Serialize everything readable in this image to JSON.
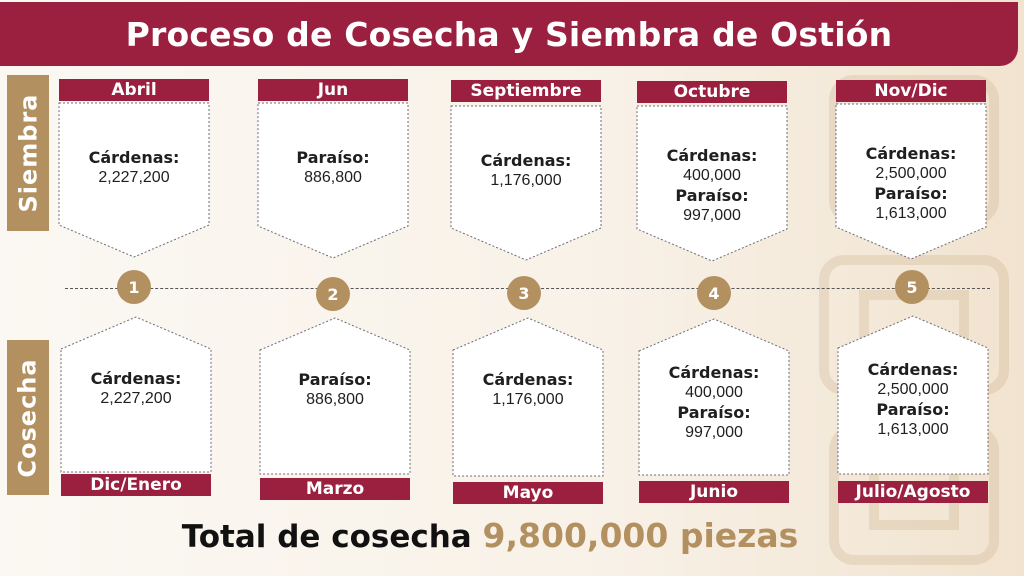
{
  "title": "Proceso de Cosecha y Siembra de Ostión",
  "side_labels": {
    "top": "Siembra",
    "bottom": "Cosecha"
  },
  "steps": [
    "1",
    "2",
    "3",
    "4",
    "5"
  ],
  "siembra": [
    {
      "month": "Abril",
      "entries": [
        {
          "loc": "Cárdenas:",
          "value": "2,227,200"
        }
      ]
    },
    {
      "month": "Jun",
      "entries": [
        {
          "loc": "Paraíso:",
          "value": "886,800"
        }
      ]
    },
    {
      "month": "Septiembre",
      "entries": [
        {
          "loc": "Cárdenas:",
          "value": "1,176,000"
        }
      ]
    },
    {
      "month": "Octubre",
      "entries": [
        {
          "loc": "Cárdenas:",
          "value": "400,000"
        },
        {
          "loc": "Paraíso:",
          "value": "997,000"
        }
      ]
    },
    {
      "month": "Nov/Dic",
      "entries": [
        {
          "loc": "Cárdenas:",
          "value": "2,500,000"
        },
        {
          "loc": "Paraíso:",
          "value": "1,613,000"
        }
      ]
    }
  ],
  "cosecha": [
    {
      "month": "Dic/Enero",
      "entries": [
        {
          "loc": "Cárdenas:",
          "value": "2,227,200"
        }
      ]
    },
    {
      "month": "Marzo",
      "entries": [
        {
          "loc": "Paraíso:",
          "value": "886,800"
        }
      ]
    },
    {
      "month": "Mayo",
      "entries": [
        {
          "loc": "Cárdenas:",
          "value": "1,176,000"
        }
      ]
    },
    {
      "month": "Junio",
      "entries": [
        {
          "loc": "Cárdenas:",
          "value": "400,000"
        },
        {
          "loc": "Paraíso:",
          "value": "997,000"
        }
      ]
    },
    {
      "month": "Julio/Agosto",
      "entries": [
        {
          "loc": "Cárdenas:",
          "value": "2,500,000"
        },
        {
          "loc": "Paraíso:",
          "value": "1,613,000"
        }
      ]
    }
  ],
  "total": {
    "label": "Total de cosecha",
    "value": "9,800,000 piezas"
  },
  "colors": {
    "maroon": "#9b1f3f",
    "gold": "#b39060"
  }
}
